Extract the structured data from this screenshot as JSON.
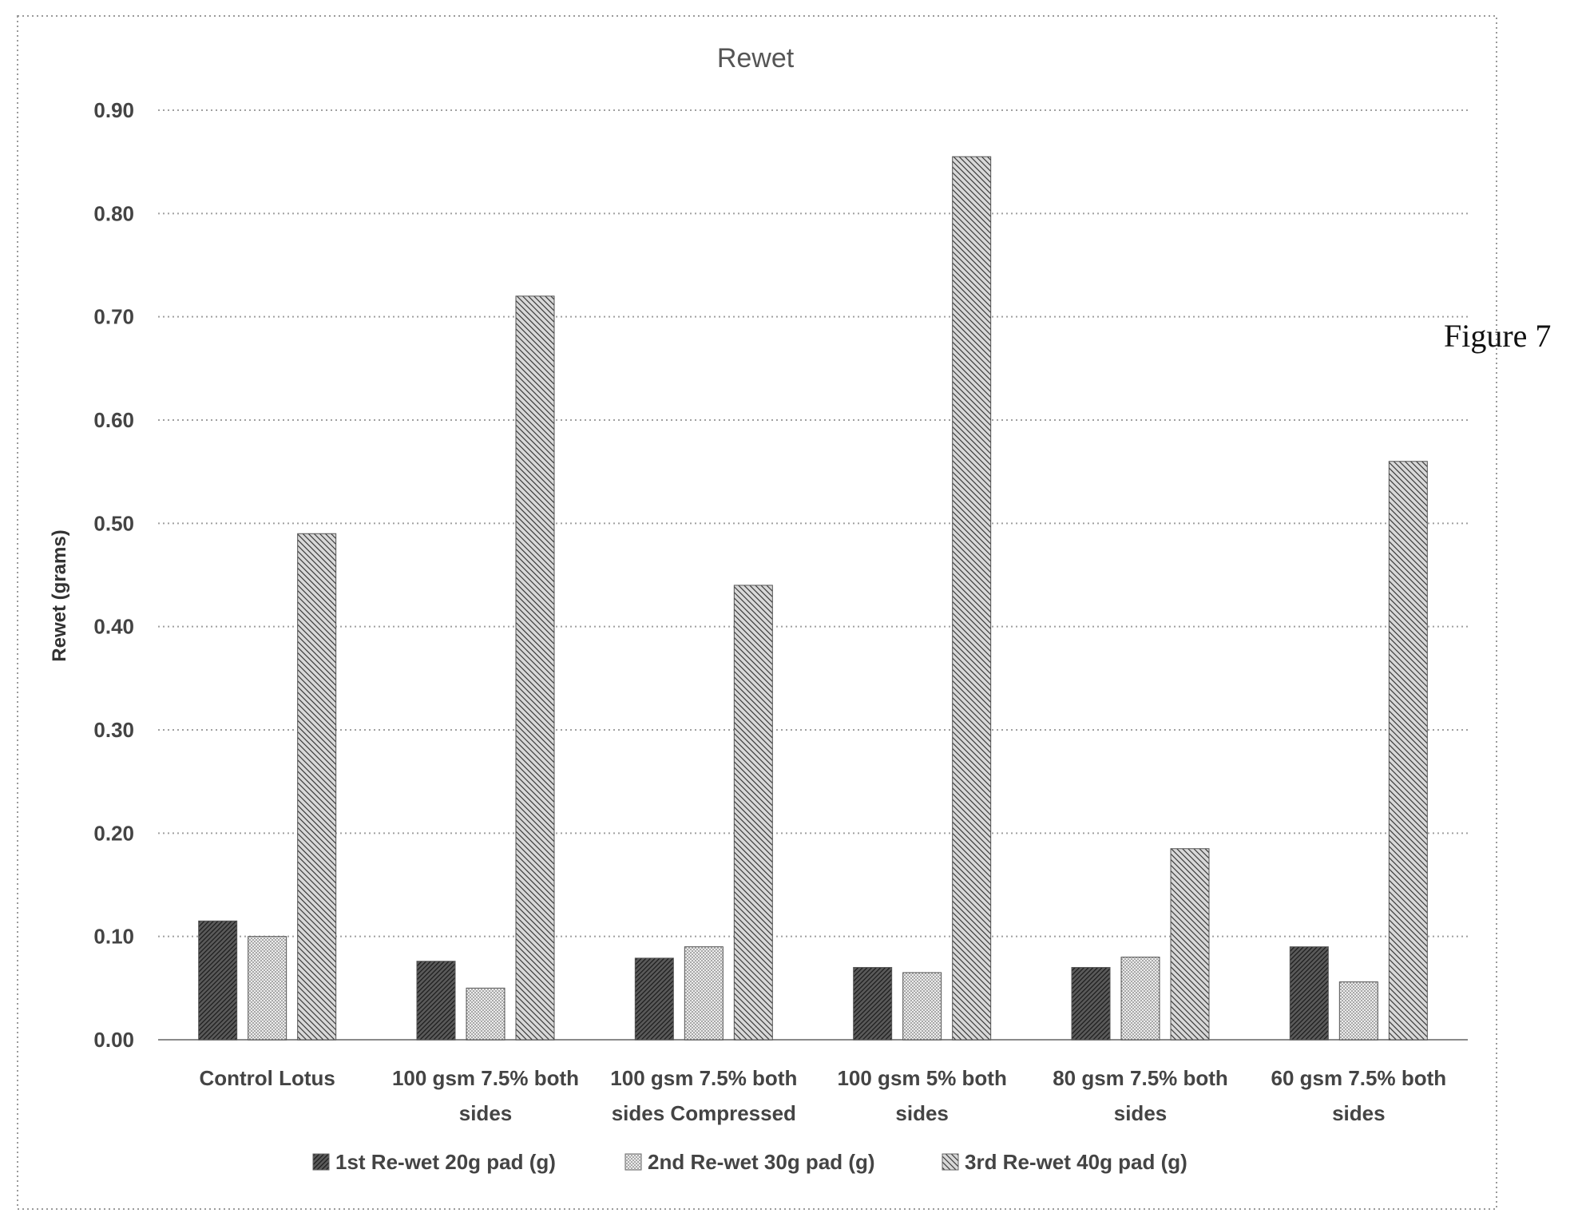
{
  "figure_label": "Figure 7",
  "chart_data": {
    "type": "bar",
    "title": "Rewet",
    "xlabel": "",
    "ylabel": "Rewet (grams)",
    "ylim": [
      0,
      0.9
    ],
    "yticks": [
      "0.00",
      "0.10",
      "0.20",
      "0.30",
      "0.40",
      "0.50",
      "0.60",
      "0.70",
      "0.80",
      "0.90"
    ],
    "grid": true,
    "legend_position": "bottom",
    "categories": [
      [
        "Control Lotus"
      ],
      [
        "100 gsm 7.5% both",
        "sides"
      ],
      [
        "100 gsm 7.5% both",
        "sides Compressed"
      ],
      [
        "100 gsm 5% both",
        "sides"
      ],
      [
        "80 gsm 7.5% both",
        "sides"
      ],
      [
        "60 gsm 7.5% both",
        "sides"
      ]
    ],
    "series": [
      {
        "name": "1st Re-wet 20g pad (g)",
        "values": [
          0.115,
          0.076,
          0.079,
          0.07,
          0.07,
          0.09
        ],
        "color": "#3a3a3a",
        "pattern": "dense-dark-hatch"
      },
      {
        "name": "2nd Re-wet 30g pad (g)",
        "values": [
          0.1,
          0.05,
          0.09,
          0.065,
          0.08,
          0.056
        ],
        "color": "#b8b8b8",
        "pattern": "light-dots"
      },
      {
        "name": "3rd Re-wet 40g pad (g)",
        "values": [
          0.49,
          0.72,
          0.44,
          0.855,
          0.185,
          0.56
        ],
        "color": "#6e6e6e",
        "pattern": "diagonal-hatch"
      }
    ]
  }
}
